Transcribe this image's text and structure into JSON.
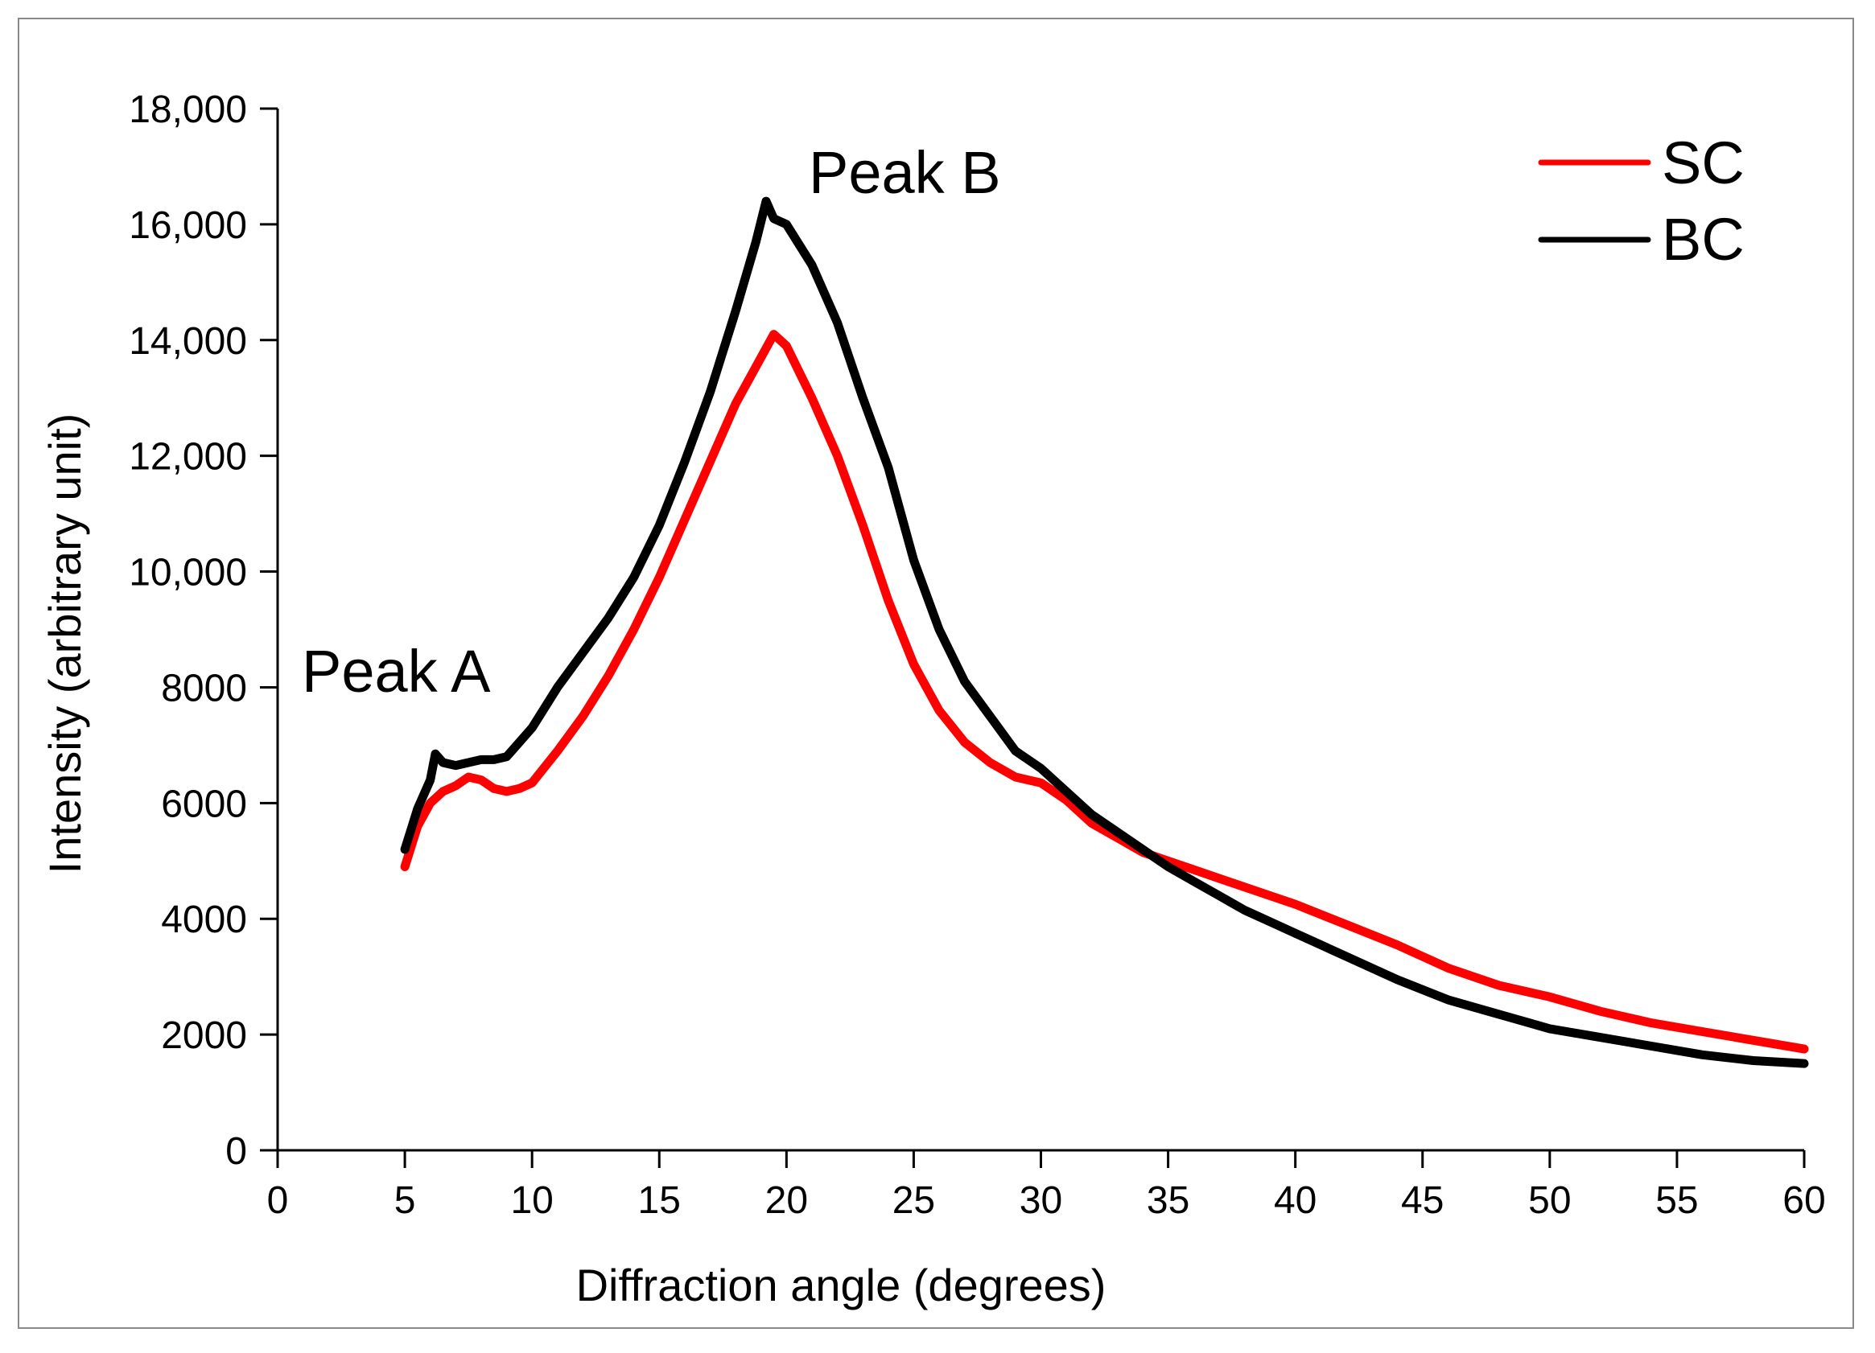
{
  "chart_data": {
    "type": "line",
    "title": "",
    "xlabel": "Diffraction angle (degrees)",
    "ylabel": "Intensity (arbitrary unit)",
    "xlim": [
      0,
      60
    ],
    "ylim": [
      0,
      18000
    ],
    "xticks": [
      0,
      5,
      10,
      15,
      20,
      25,
      30,
      35,
      40,
      45,
      50,
      55,
      60
    ],
    "xtick_labels": [
      "0",
      "5",
      "10",
      "15",
      "20",
      "25",
      "30",
      "35",
      "40",
      "45",
      "50",
      "55",
      "60"
    ],
    "yticks": [
      0,
      2000,
      4000,
      6000,
      8000,
      10000,
      12000,
      14000,
      16000,
      18000
    ],
    "ytick_labels": [
      "0",
      "2000",
      "4000",
      "6000",
      "8000",
      "10,000",
      "12,000",
      "14,000",
      "16,000",
      "18,000"
    ],
    "grid": false,
    "legend_position": "top-right",
    "annotations": [
      {
        "text": "Peak A",
        "x": 5.2,
        "y": 7700
      },
      {
        "text": "Peak B",
        "x": 21.3,
        "y": 16500
      }
    ],
    "series": [
      {
        "name": "SC",
        "color": "#ff0000",
        "x": [
          5,
          5.5,
          6,
          6.5,
          7,
          7.5,
          8,
          8.5,
          9,
          9.5,
          10,
          11,
          12,
          13,
          14,
          15,
          16,
          17,
          18,
          19,
          19.5,
          20,
          21,
          22,
          23,
          24,
          25,
          26,
          27,
          28,
          29,
          30,
          31,
          32,
          33,
          34,
          35,
          36,
          37,
          38,
          39,
          40,
          42,
          44,
          46,
          48,
          50,
          52,
          54,
          56,
          58,
          60
        ],
        "y": [
          4900,
          5600,
          6000,
          6200,
          6300,
          6450,
          6400,
          6250,
          6200,
          6250,
          6350,
          6900,
          7500,
          8200,
          9000,
          9900,
          10900,
          11900,
          12900,
          13700,
          14100,
          13900,
          13000,
          12000,
          10800,
          9500,
          8400,
          7600,
          7050,
          6700,
          6450,
          6350,
          6050,
          5650,
          5400,
          5150,
          5000,
          4850,
          4700,
          4550,
          4400,
          4250,
          3900,
          3550,
          3150,
          2850,
          2650,
          2400,
          2200,
          2050,
          1900,
          1750
        ]
      },
      {
        "name": "BC",
        "color": "#000000",
        "x": [
          5,
          5.5,
          6,
          6.2,
          6.5,
          7,
          7.5,
          8,
          8.5,
          9,
          10,
          11,
          12,
          13,
          14,
          15,
          16,
          17,
          18,
          18.8,
          19.2,
          19.5,
          20,
          21,
          22,
          23,
          24,
          25,
          26,
          27,
          28,
          29,
          30,
          31,
          32,
          33,
          34,
          35,
          36,
          37,
          38,
          39,
          40,
          42,
          44,
          46,
          48,
          50,
          52,
          54,
          56,
          58,
          60
        ],
        "y": [
          5200,
          5900,
          6400,
          6850,
          6700,
          6650,
          6700,
          6750,
          6750,
          6800,
          7300,
          8000,
          8600,
          9200,
          9900,
          10800,
          11900,
          13100,
          14500,
          15700,
          16400,
          16100,
          16000,
          15300,
          14300,
          13000,
          11800,
          10200,
          9000,
          8100,
          7500,
          6900,
          6600,
          6200,
          5800,
          5500,
          5200,
          4900,
          4650,
          4400,
          4150,
          3950,
          3750,
          3350,
          2950,
          2600,
          2350,
          2100,
          1950,
          1800,
          1650,
          1550,
          1500
        ]
      }
    ]
  }
}
